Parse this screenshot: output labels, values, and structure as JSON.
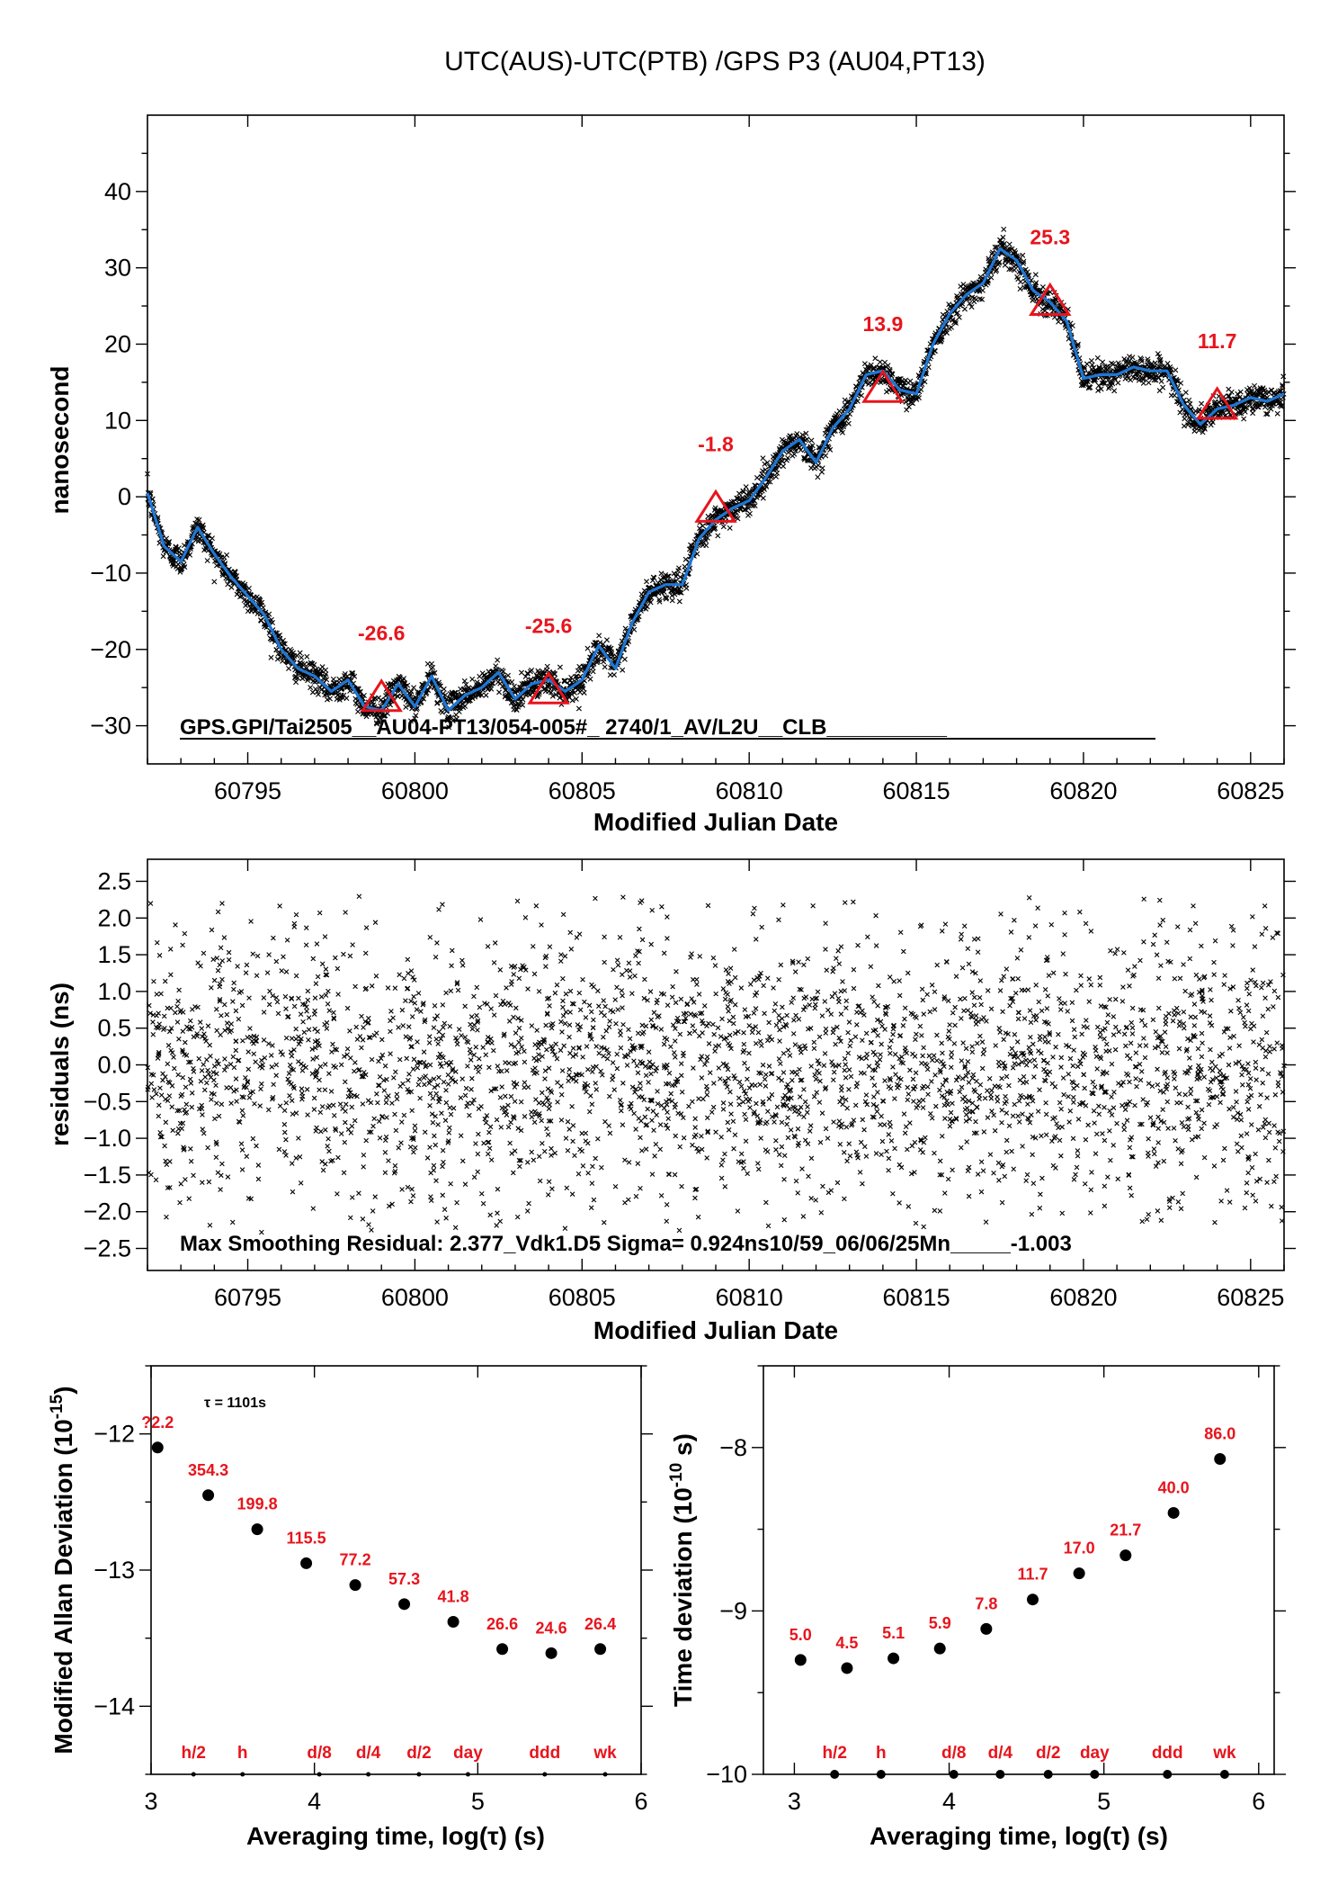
{
  "chart_data": [
    {
      "id": "top",
      "type": "scatter",
      "title": "UTC(AUS)-UTC(PTB)  /GPS  P3  (AU04,PT13)",
      "xlabel": "Modified Julian Date",
      "ylabel": "nanosecond",
      "xlim": [
        60792,
        60826
      ],
      "ylim": [
        -35,
        50
      ],
      "xticks": [
        60795,
        60800,
        60805,
        60810,
        60815,
        60820,
        60825
      ],
      "yticks": [
        -30,
        -20,
        -10,
        0,
        10,
        20,
        30,
        40
      ],
      "ytick_labels": [
        "−30",
        "−20",
        "−10",
        "0",
        "10",
        "20",
        "30",
        "40"
      ],
      "note": "GPS.GPI/Tai2505__AU04-PT13/054-005#_  2740/1_AV/L2U__CLB__________",
      "colors": {
        "points": "#000000",
        "smooth_line": "#1f77d4",
        "markers": "#e8141c"
      },
      "smooth_curve": {
        "name": "",
        "x": [
          60792.0,
          60792.5,
          60793.0,
          60793.5,
          60794.0,
          60794.5,
          60795.0,
          60795.5,
          60796.0,
          60796.5,
          60797.0,
          60797.5,
          60798.0,
          60798.5,
          60799.0,
          60799.5,
          60800.0,
          60800.5,
          60801.0,
          60801.5,
          60802.0,
          60802.5,
          60803.0,
          60803.5,
          60804.0,
          60804.5,
          60805.0,
          60805.5,
          60806.0,
          60806.5,
          60807.0,
          60807.5,
          60808.0,
          60808.5,
          60809.0,
          60809.5,
          60810.0,
          60810.5,
          60811.0,
          60811.5,
          60812.0,
          60812.5,
          60813.0,
          60813.5,
          60814.0,
          60814.5,
          60815.0,
          60815.5,
          60816.0,
          60816.5,
          60817.0,
          60817.5,
          60818.0,
          60818.5,
          60819.0,
          60819.5,
          60820.0,
          60820.5,
          60821.0,
          60821.5,
          60822.0,
          60822.5,
          60823.0,
          60823.5,
          60824.0,
          60824.5,
          60825.0,
          60825.5,
          60826.0
        ],
        "y": [
          0.5,
          -6.5,
          -8.5,
          -4.0,
          -7.5,
          -10.5,
          -13.0,
          -15.5,
          -20.0,
          -22.5,
          -23.5,
          -25.5,
          -24.0,
          -27.5,
          -28.0,
          -24.5,
          -27.5,
          -23.5,
          -28.0,
          -26.0,
          -25.0,
          -23.0,
          -26.5,
          -24.5,
          -24.0,
          -25.5,
          -24.0,
          -19.5,
          -22.5,
          -16.5,
          -12.5,
          -11.5,
          -11.5,
          -5.5,
          -3.0,
          -1.5,
          -0.5,
          2.5,
          6.0,
          7.5,
          4.5,
          9.0,
          11.5,
          16.0,
          16.5,
          14.0,
          13.5,
          20.0,
          24.0,
          26.5,
          28.0,
          32.5,
          31.0,
          27.0,
          25.5,
          23.0,
          15.5,
          16.0,
          16.0,
          17.0,
          16.5,
          16.5,
          12.0,
          9.5,
          11.5,
          12.0,
          13.0,
          12.5,
          13.5
        ]
      },
      "markers": [
        {
          "x": 60799,
          "y": -26.6,
          "label": "-26.6"
        },
        {
          "x": 60804,
          "y": -25.6,
          "label": "-25.6"
        },
        {
          "x": 60809,
          "y": -1.8,
          "label": "-1.8"
        },
        {
          "x": 60814,
          "y": 13.9,
          "label": "13.9"
        },
        {
          "x": 60819,
          "y": 25.3,
          "label": "25.3"
        },
        {
          "x": 60824,
          "y": 11.7,
          "label": "11.7"
        }
      ]
    },
    {
      "id": "residuals",
      "type": "scatter",
      "xlabel": "Modified Julian Date",
      "ylabel": "residuals (ns)",
      "xlim": [
        60792,
        60826
      ],
      "ylim": [
        -2.8,
        2.8
      ],
      "xticks": [
        60795,
        60800,
        60805,
        60810,
        60815,
        60820,
        60825
      ],
      "yticks": [
        -2.5,
        -2.0,
        -1.5,
        -1.0,
        -0.5,
        0.0,
        0.5,
        1.0,
        1.5,
        2.0,
        2.5
      ],
      "ytick_labels": [
        "−2.5",
        "−2.0",
        "−1.5",
        "−1.0",
        "−0.5",
        "0.0",
        "0.5",
        "1.0",
        "1.5",
        "2.0",
        "2.5"
      ],
      "note": "Max Smoothing Residual: 2.377_Vdk1.D5  Sigma= 0.924ns10/59_06/06/25Mn_____-1.003",
      "sigma_ns": 0.924,
      "max_residual_ns": 2.377
    },
    {
      "id": "mdev",
      "type": "scatter",
      "xlabel": "Averaging time, log(τ) (s)",
      "ylabel": "Modified Allan Deviation (10",
      "ylabel_exp": "-15",
      "ylabel_close": ")",
      "note": "τ = 1101s",
      "xlim": [
        3,
        6
      ],
      "ylim": [
        -14.5,
        -11.5
      ],
      "xticks": [
        3,
        4,
        5,
        6
      ],
      "yticks": [
        -14,
        -13,
        -12
      ],
      "ytick_labels": [
        "−14",
        "−13",
        "−12"
      ],
      "points": [
        {
          "x": 3.04,
          "y": -12.1,
          "label": "?2.2"
        },
        {
          "x": 3.35,
          "y": -12.45,
          "label": "354.3"
        },
        {
          "x": 3.65,
          "y": -12.7,
          "label": "199.8"
        },
        {
          "x": 3.95,
          "y": -12.95,
          "label": "115.5"
        },
        {
          "x": 4.25,
          "y": -13.11,
          "label": "77.2"
        },
        {
          "x": 4.55,
          "y": -13.25,
          "label": "57.3"
        },
        {
          "x": 4.85,
          "y": -13.38,
          "label": "41.8"
        },
        {
          "x": 5.15,
          "y": -13.58,
          "label": "26.6"
        },
        {
          "x": 5.45,
          "y": -13.61,
          "label": "24.6"
        },
        {
          "x": 5.75,
          "y": -13.58,
          "label": "26.4"
        }
      ],
      "interval_markers": [
        {
          "x": 3.26,
          "label": "h/2"
        },
        {
          "x": 3.56,
          "label": "h"
        },
        {
          "x": 4.03,
          "label": "d/8"
        },
        {
          "x": 4.33,
          "label": "d/4"
        },
        {
          "x": 4.64,
          "label": "d/2"
        },
        {
          "x": 4.94,
          "label": "day"
        },
        {
          "x": 5.41,
          "label": "ddd"
        },
        {
          "x": 5.78,
          "label": "wk"
        }
      ]
    },
    {
      "id": "tdev",
      "type": "scatter",
      "xlabel": "Averaging time, log(τ) (s)",
      "ylabel": "Time deviation (10",
      "ylabel_exp": "-10",
      "ylabel_close": " s)",
      "xlim": [
        2.8,
        6.1
      ],
      "ylim": [
        -10,
        -7.5
      ],
      "xticks": [
        3,
        4,
        5,
        6
      ],
      "yticks": [
        -10,
        -9,
        -8
      ],
      "ytick_labels": [
        "−10",
        "−9",
        "−8"
      ],
      "points": [
        {
          "x": 3.04,
          "y": -9.3,
          "label": "5.0"
        },
        {
          "x": 3.34,
          "y": -9.35,
          "label": "4.5"
        },
        {
          "x": 3.64,
          "y": -9.29,
          "label": "5.1"
        },
        {
          "x": 3.94,
          "y": -9.23,
          "label": "5.9"
        },
        {
          "x": 4.24,
          "y": -9.11,
          "label": "7.8"
        },
        {
          "x": 4.54,
          "y": -8.93,
          "label": "11.7"
        },
        {
          "x": 4.84,
          "y": -8.77,
          "label": "17.0"
        },
        {
          "x": 5.14,
          "y": -8.66,
          "label": "21.7"
        },
        {
          "x": 5.45,
          "y": -8.4,
          "label": "40.0"
        },
        {
          "x": 5.75,
          "y": -8.07,
          "label": "86.0"
        }
      ],
      "interval_markers": [
        {
          "x": 3.26,
          "label": "h/2"
        },
        {
          "x": 3.56,
          "label": "h"
        },
        {
          "x": 4.03,
          "label": "d/8"
        },
        {
          "x": 4.33,
          "label": "d/4"
        },
        {
          "x": 4.64,
          "label": "d/2"
        },
        {
          "x": 4.94,
          "label": "day"
        },
        {
          "x": 5.41,
          "label": "ddd"
        },
        {
          "x": 5.78,
          "label": "wk"
        }
      ]
    }
  ]
}
